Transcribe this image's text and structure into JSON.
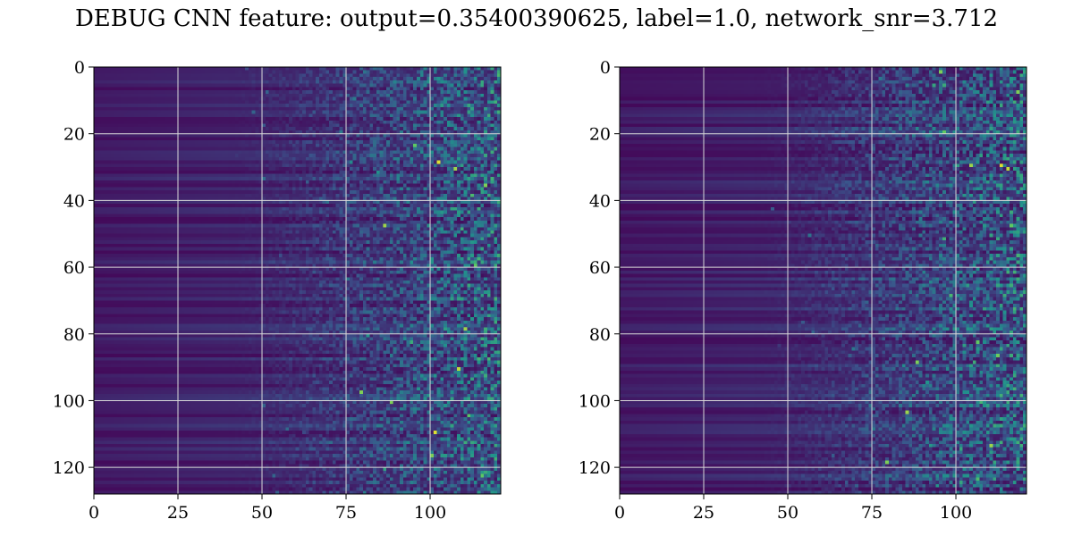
{
  "figure": {
    "title": "DEBUG CNN feature: output=0.35400390625, label=1.0, network_snr=3.712"
  },
  "colormap": [
    "#440154",
    "#3b528b",
    "#21918c",
    "#5ec962",
    "#fde725"
  ],
  "chart_data": [
    {
      "type": "heatmap",
      "title": "",
      "xlabel": "",
      "ylabel": "",
      "xlim": [
        0,
        121
      ],
      "ylim": [
        128,
        0
      ],
      "xticks": [
        0,
        25,
        50,
        75,
        100
      ],
      "yticks": [
        0,
        20,
        40,
        60,
        80,
        100,
        120
      ],
      "grid": true,
      "rows": 128,
      "cols": 121,
      "value_range": [
        0,
        1
      ],
      "pattern": "low uniform values on the left (columns 0-40), increasing noisy speckle toward the right (columns 75-121)",
      "highlights": [
        {
          "x": 102,
          "y": 28,
          "v": 0.95
        },
        {
          "x": 107,
          "y": 30,
          "v": 0.85
        },
        {
          "x": 101,
          "y": 109,
          "v": 0.95
        },
        {
          "x": 108,
          "y": 90,
          "v": 0.9
        },
        {
          "x": 110,
          "y": 78,
          "v": 0.85
        },
        {
          "x": 86,
          "y": 47,
          "v": 0.85
        },
        {
          "x": 79,
          "y": 97,
          "v": 0.8
        },
        {
          "x": 88,
          "y": 100,
          "v": 0.8
        },
        {
          "x": 100,
          "y": 116,
          "v": 0.8
        },
        {
          "x": 116,
          "y": 35,
          "v": 0.8
        },
        {
          "x": 95,
          "y": 23,
          "v": 0.75
        },
        {
          "x": 113,
          "y": 59,
          "v": 0.75
        }
      ]
    },
    {
      "type": "heatmap",
      "title": "",
      "xlabel": "",
      "ylabel": "",
      "xlim": [
        0,
        121
      ],
      "ylim": [
        128,
        0
      ],
      "xticks": [
        0,
        25,
        50,
        75,
        100
      ],
      "yticks": [
        0,
        20,
        40,
        60,
        80,
        100,
        120
      ],
      "grid": true,
      "rows": 128,
      "cols": 121,
      "value_range": [
        0,
        1
      ],
      "pattern": "low uniform values on the left (columns 0-50), increasing noisy speckle toward the right (columns 70-121)",
      "highlights": [
        {
          "x": 113,
          "y": 29,
          "v": 0.95
        },
        {
          "x": 115,
          "y": 30,
          "v": 0.9
        },
        {
          "x": 104,
          "y": 29,
          "v": 0.85
        },
        {
          "x": 85,
          "y": 103,
          "v": 0.85
        },
        {
          "x": 110,
          "y": 113,
          "v": 0.85
        },
        {
          "x": 79,
          "y": 118,
          "v": 0.8
        },
        {
          "x": 88,
          "y": 88,
          "v": 0.8
        },
        {
          "x": 95,
          "y": 1,
          "v": 0.8
        },
        {
          "x": 118,
          "y": 7,
          "v": 0.8
        },
        {
          "x": 106,
          "y": 82,
          "v": 0.75
        },
        {
          "x": 116,
          "y": 47,
          "v": 0.75
        },
        {
          "x": 96,
          "y": 19,
          "v": 0.75
        }
      ]
    }
  ]
}
